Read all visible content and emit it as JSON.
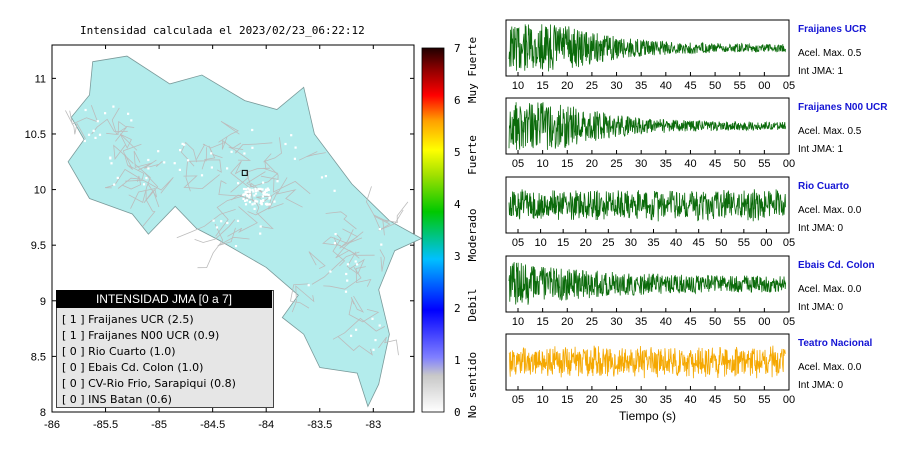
{
  "map": {
    "title": "Intensidad calculada el 2023/02/23_06:22:12",
    "lat_ticks": [
      "11",
      "10.5",
      "10",
      "9.5",
      "9",
      "8.5",
      "8"
    ],
    "lon_ticks": [
      "-86",
      "-85.5",
      "-85",
      "-84.5",
      "-84",
      "-83.5",
      "-83"
    ],
    "land_color": "#b3ecec",
    "road_color": "#bcbcbc",
    "station_marker": {
      "lon": -84.2,
      "lat": 10.15
    }
  },
  "colorbar": {
    "ticks": [
      "0",
      "1",
      "2",
      "3",
      "4",
      "5",
      "6",
      "7"
    ],
    "labels": [
      "No sentido",
      "Debil",
      "Moderado",
      "Fuerte",
      "Muy Fuerte"
    ]
  },
  "legend": {
    "title": "INTENSIDAD JMA [0 a 7]",
    "items": [
      {
        "jma": "[ 1 ]",
        "text": "Fraijanes UCR (2.5)"
      },
      {
        "jma": "[ 1 ]",
        "text": "Fraijanes N00 UCR (0.9)"
      },
      {
        "jma": "[ 0 ]",
        "text": "Rio Cuarto (1.0)"
      },
      {
        "jma": "[ 0 ]",
        "text": "Ebais Cd. Colon (1.0)"
      },
      {
        "jma": "[ 0 ]",
        "text": "CV-Rio Frio, Sarapiqui (0.8)"
      },
      {
        "jma": "[ 0 ]",
        "text": "INS Batan (0.6)"
      }
    ]
  },
  "chart_data": [
    {
      "type": "line",
      "title": "Intensidad calculada el 2023/02/23_06:22:12",
      "xlim": [
        -86,
        -82.6
      ],
      "ylim": [
        8,
        11.3
      ],
      "note_series": "map"
    },
    {
      "type": "line",
      "name": "Fraijanes UCR",
      "x_ticks": [
        "10",
        "15",
        "20",
        "25",
        "30",
        "35",
        "40",
        "45",
        "50",
        "55",
        "00",
        "05"
      ],
      "acel_max": "Acel. Max. 0.5",
      "int_jma": "Int JMA: 1",
      "color": "#0b6b0b"
    },
    {
      "type": "line",
      "name": "Fraijanes N00 UCR",
      "x_ticks": [
        "05",
        "10",
        "15",
        "20",
        "25",
        "30",
        "35",
        "40",
        "45",
        "50",
        "55",
        "00"
      ],
      "acel_max": "Acel. Max. 0.5",
      "int_jma": "Int JMA: 1",
      "color": "#0b6b0b"
    },
    {
      "type": "line",
      "name": "Rio Cuarto",
      "x_ticks": [
        "05",
        "10",
        "15",
        "20",
        "25",
        "30",
        "35",
        "40",
        "45",
        "50",
        "55",
        "00",
        "05"
      ],
      "acel_max": "Acel. Max. 0.0",
      "int_jma": "Int JMA: 0",
      "color": "#0b6b0b"
    },
    {
      "type": "line",
      "name": "Ebais Cd. Colon",
      "x_ticks": [
        "10",
        "15",
        "20",
        "25",
        "30",
        "35",
        "40",
        "45",
        "50",
        "55",
        "00",
        "05"
      ],
      "acel_max": "Acel. Max. 0.0",
      "int_jma": "Int JMA: 0",
      "color": "#0b6b0b"
    },
    {
      "type": "line",
      "name": "Teatro Nacional",
      "x_ticks": [
        "05",
        "10",
        "15",
        "20",
        "25",
        "30",
        "35",
        "40",
        "45",
        "50",
        "55",
        "00"
      ],
      "acel_max": "Acel. Max. 0.0",
      "int_jma": "Int JMA: 0",
      "color": "#f5a800",
      "xlabel": "Tiempo (s)"
    }
  ]
}
